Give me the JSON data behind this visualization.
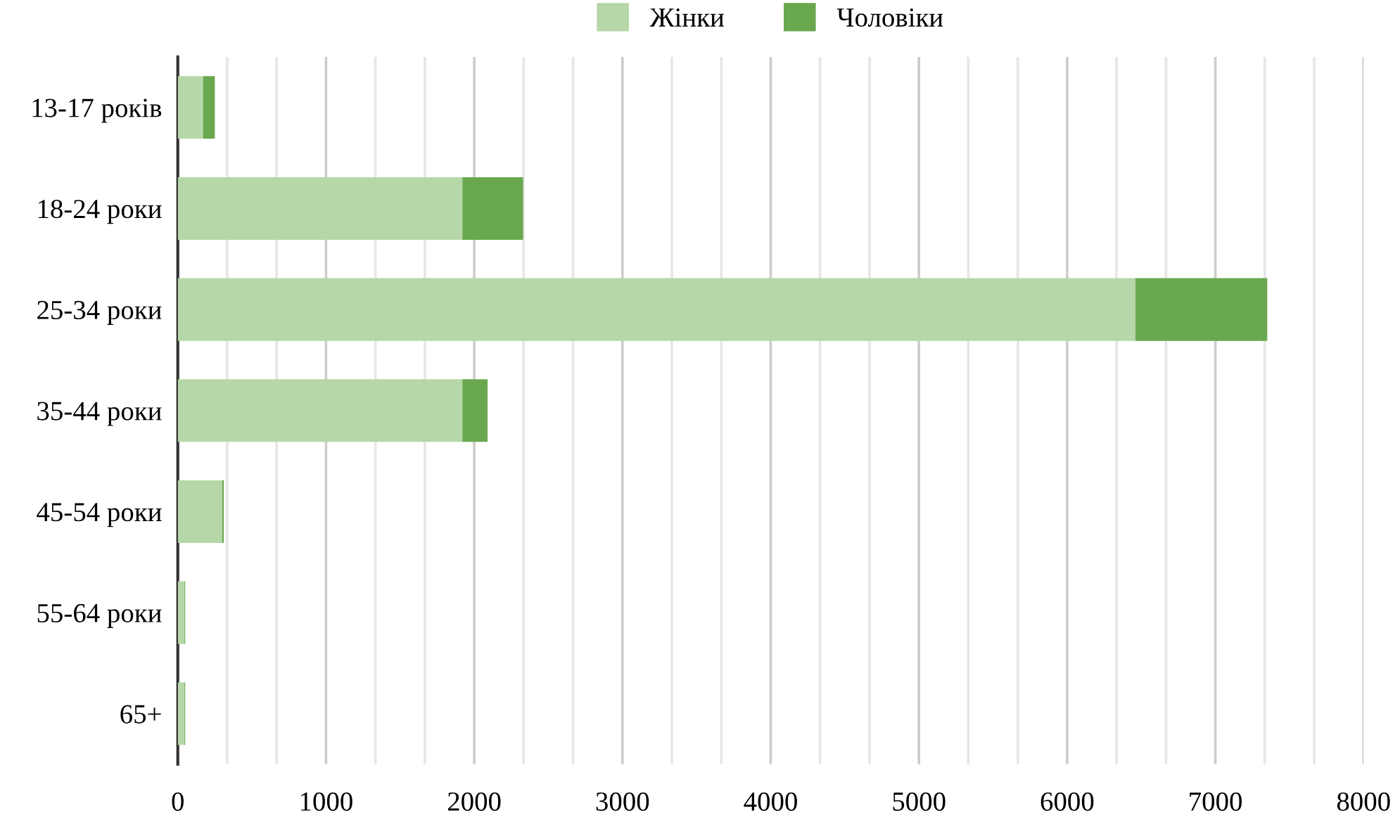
{
  "chart_data": {
    "type": "bar",
    "orientation": "horizontal",
    "stacked": true,
    "categories": [
      "13-17 років",
      "18-24 роки",
      "25-34 роки",
      "35-44 роки",
      "45-54 роки",
      "55-64 роки",
      "65+"
    ],
    "series": [
      {
        "name": "Жінки",
        "color": "#b6d7a8",
        "values": [
          170,
          1920,
          6460,
          1920,
          300,
          45,
          45
        ]
      },
      {
        "name": "Чоловіки",
        "color": "#6aa84f",
        "values": [
          80,
          410,
          890,
          170,
          10,
          5,
          5
        ]
      }
    ],
    "xlim": [
      0,
      8000
    ],
    "xticks": [
      0,
      {
        "value": 333,
        "label": null
      },
      {
        "value": 667,
        "label": null
      },
      1000,
      {
        "value": 1333,
        "label": null
      },
      {
        "value": 1667,
        "label": null
      },
      2000,
      {
        "value": 2333,
        "label": null
      },
      {
        "value": 2667,
        "label": null
      },
      3000,
      {
        "value": 3333,
        "label": null
      },
      {
        "value": 3667,
        "label": null
      },
      4000,
      {
        "value": 4333,
        "label": null
      },
      {
        "value": 4667,
        "label": null
      },
      5000,
      {
        "value": 5333,
        "label": null
      },
      {
        "value": 5667,
        "label": null
      },
      6000,
      {
        "value": 6333,
        "label": null
      },
      {
        "value": 6667,
        "label": null
      },
      7000,
      {
        "value": 7333,
        "label": null
      },
      {
        "value": 7667,
        "label": null
      },
      8000
    ],
    "grid": "x",
    "legend": "top"
  }
}
